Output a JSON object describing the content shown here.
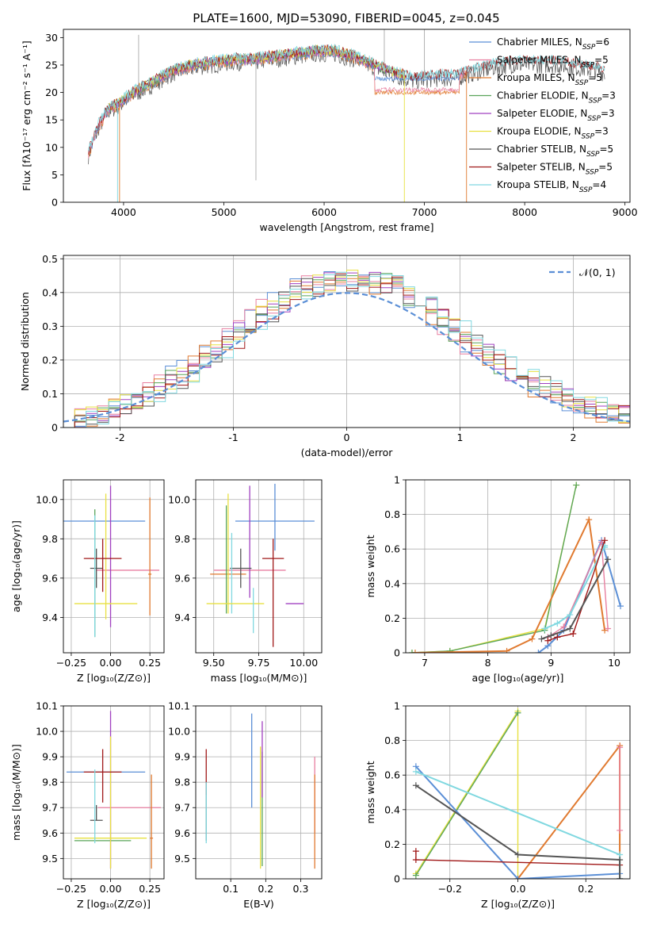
{
  "title": "PLATE=1600, MJD=53090, FIBERID=0045, z=0.045",
  "colors": {
    "chabrier_miles": "#5b8fd6",
    "salpeter_miles": "#e87fa0",
    "kroupa_miles": "#e07a30",
    "chabrier_elodie": "#5aa55a",
    "salpeter_elodie": "#a040c0",
    "kroupa_elodie": "#e8e040",
    "chabrier_stelib": "#555555",
    "salpeter_stelib": "#a01818",
    "kroupa_stelib": "#80d8e0",
    "normal_curve": "#5b8fd6",
    "grid": "#b0b0b0"
  },
  "legend_spectrum": [
    {
      "key": "chabrier_miles",
      "pre": "Chabrier MILES, N",
      "sub": "SSP",
      "post": "=6"
    },
    {
      "key": "salpeter_miles",
      "pre": "Salpeter MILES, N",
      "sub": "SSP",
      "post": "=5"
    },
    {
      "key": "kroupa_miles",
      "pre": "Kroupa MILES, N",
      "sub": "SSP",
      "post": "=5"
    },
    {
      "key": "chabrier_elodie",
      "pre": "Chabrier ELODIE, N",
      "sub": "SSP",
      "post": "=3"
    },
    {
      "key": "salpeter_elodie",
      "pre": "Salpeter ELODIE, N",
      "sub": "SSP",
      "post": "=3"
    },
    {
      "key": "kroupa_elodie",
      "pre": "Kroupa ELODIE, N",
      "sub": "SSP",
      "post": "=3"
    },
    {
      "key": "chabrier_stelib",
      "pre": "Chabrier STELIB, N",
      "sub": "SSP",
      "post": "=5"
    },
    {
      "key": "salpeter_stelib",
      "pre": "Salpeter STELIB, N",
      "sub": "SSP",
      "post": "=5"
    },
    {
      "key": "kroupa_stelib",
      "pre": "Kroupa STELIB, N",
      "sub": "SSP",
      "post": "=4"
    }
  ],
  "chart_data": [
    {
      "id": "spectrum",
      "type": "line",
      "xlabel": "wavelength [Angstrom, rest frame]",
      "ylabel": "Flux [fλ10⁻¹⁷ erg cm⁻² s⁻¹ A⁻¹]",
      "xlim": [
        3400,
        9050
      ],
      "ylim": [
        0,
        31.5
      ],
      "xticks": [
        4000,
        5000,
        6000,
        7000,
        8000,
        9000
      ],
      "yticks": [
        0,
        5,
        10,
        15,
        20,
        25,
        30
      ],
      "continuum": {
        "x": [
          3650,
          3750,
          3850,
          3950,
          4100,
          4300,
          4500,
          4700,
          4900,
          5100,
          5300,
          5500,
          5700,
          5900,
          6100,
          6300,
          6500,
          6700,
          6900,
          7100,
          7300,
          7500,
          7700,
          7900,
          8100,
          8300,
          8500,
          8700,
          8800
        ],
        "y": [
          9,
          14,
          17,
          18,
          20,
          22,
          24,
          25,
          25.5,
          26,
          26,
          26.5,
          27,
          27.5,
          27.5,
          26.5,
          25,
          23.5,
          22.5,
          23,
          23,
          24,
          25,
          25.5,
          25.5,
          25.5,
          25,
          24.5,
          24
        ]
      },
      "miles_gap_value": {
        "chabrier_miles": 22.5,
        "kroupa_miles": 20,
        "salpeter_miles": 20.5
      }
    },
    {
      "id": "residuals",
      "type": "step",
      "xlabel": "(data-model)/error",
      "ylabel": "Normed distribution",
      "xlim": [
        -2.5,
        2.5
      ],
      "ylim": [
        0,
        0.51
      ],
      "xticks": [
        -2,
        -1,
        0,
        1,
        2
      ],
      "yticks": [
        0,
        0.1,
        0.2,
        0.3,
        0.4,
        0.5
      ],
      "normal_label": "𝒩(0, 1)"
    },
    {
      "id": "age_vs_z",
      "type": "errorbar",
      "xlabel": "Z [log₁₀(Z/Z⊙)]",
      "ylabel": "age  [log₁₀(age/yr)]",
      "xlim": [
        -0.3,
        0.34
      ],
      "ylim": [
        9.22,
        10.1
      ],
      "xticks": [
        -0.25,
        0.0,
        0.25
      ],
      "xticklabels": [
        "−0.25",
        "0.00",
        "0.25"
      ],
      "yticks": [
        9.4,
        9.6,
        9.8,
        10.0
      ],
      "yticklabels": [
        "9.4",
        "9.6",
        "9.8",
        "10.0"
      ],
      "points": [
        {
          "key": "chabrier_miles",
          "x": -0.05,
          "xerr": 0.27,
          "y": 9.89,
          "yerr": [
            0.0,
            0.0
          ]
        },
        {
          "key": "salpeter_miles",
          "x": 0.11,
          "xerr": 0.2,
          "y": 9.64,
          "yerr": [
            0.0,
            0.0
          ]
        },
        {
          "key": "kroupa_miles",
          "x": 0.25,
          "xerr": 0.01,
          "y": 9.62,
          "yerr": [
            0.21,
            0.39
          ]
        },
        {
          "key": "chabrier_elodie",
          "x": -0.1,
          "xerr": 0.0,
          "y": 9.62,
          "yerr": [
            0.32,
            0.33
          ]
        },
        {
          "key": "salpeter_elodie",
          "x": 0.0,
          "xerr": 0.0,
          "y": 9.7,
          "yerr": [
            0.35,
            0.37
          ]
        },
        {
          "key": "kroupa_elodie",
          "x": -0.03,
          "xerr": 0.2,
          "y": 9.47,
          "yerr": [
            0.08,
            0.56
          ]
        },
        {
          "key": "chabrier_stelib",
          "x": -0.09,
          "xerr": 0.04,
          "y": 9.65,
          "yerr": [
            0.1,
            0.1
          ]
        },
        {
          "key": "salpeter_stelib",
          "x": -0.05,
          "xerr": 0.12,
          "y": 9.7,
          "yerr": [
            0.17,
            0.1
          ]
        },
        {
          "key": "kroupa_stelib",
          "x": -0.1,
          "xerr": 0.0,
          "y": 9.47,
          "yerr": [
            0.17,
            0.45
          ]
        }
      ]
    },
    {
      "id": "age_vs_mass",
      "type": "errorbar",
      "xlabel": "mass [log₁₀(M/M⊙)]",
      "ylabel": "",
      "xlim": [
        9.4,
        10.1
      ],
      "ylim": [
        9.22,
        10.1
      ],
      "xticks": [
        9.5,
        9.75,
        10.0
      ],
      "xticklabels": [
        "9.50",
        "9.75",
        "10.00"
      ],
      "yticks": [
        9.4,
        9.6,
        9.8,
        10.0
      ],
      "yticklabels": [
        "9.4",
        "9.6",
        "9.8",
        "10.0"
      ],
      "points": [
        {
          "key": "chabrier_miles",
          "x": 9.84,
          "xerr": 0.22,
          "y": 9.89,
          "yerr": [
            0.15,
            0.19
          ]
        },
        {
          "key": "salpeter_miles",
          "x": 9.7,
          "xerr": 0.2,
          "y": 9.64,
          "yerr": [
            0.0,
            0.0
          ]
        },
        {
          "key": "kroupa_miles",
          "x": 9.58,
          "xerr": 0.1,
          "y": 9.62,
          "yerr": [
            0.0,
            0.0
          ]
        },
        {
          "key": "chabrier_elodie",
          "x": 9.57,
          "xerr": 0.0,
          "y": 9.62,
          "yerr": [
            0.2,
            0.35
          ]
        },
        {
          "key": "salpeter_elodie",
          "x": 9.7,
          "xerr": 0.0,
          "y": 9.7,
          "yerr": [
            0.2,
            0.37
          ]
        },
        {
          "key": "kroupa_elodie",
          "x": 9.58,
          "xerr": 0.0,
          "y": 9.62,
          "yerr": [
            0.2,
            0.41
          ]
        },
        {
          "key": "chabrier_stelib",
          "x": 9.65,
          "xerr": 0.06,
          "y": 9.65,
          "yerr": [
            0.1,
            0.1
          ]
        },
        {
          "key": "salpeter_stelib",
          "x": 9.83,
          "xerr": 0.06,
          "y": 9.7,
          "yerr": [
            0.45,
            0.1
          ]
        },
        {
          "key": "kroupa_stelib",
          "x": 9.6,
          "xerr": 0.0,
          "y": 9.62,
          "yerr": [
            0.2,
            0.21
          ]
        }
      ],
      "extra_points": [
        {
          "key": "kroupa_elodie",
          "x": 9.62,
          "xerr": 0.16,
          "y": 9.47,
          "yerr": [
            0,
            0
          ]
        },
        {
          "key": "salpeter_elodie",
          "x": 9.95,
          "xerr": 0.05,
          "y": 9.47,
          "yerr": [
            0,
            0
          ]
        },
        {
          "key": "kroupa_stelib",
          "x": 9.72,
          "xerr": 0.0,
          "y": 9.47,
          "yerr": [
            0.15,
            0.08
          ]
        }
      ]
    },
    {
      "id": "weight_vs_age",
      "type": "line",
      "xlabel": "age  [log₁₀(age/yr)]",
      "ylabel": "mass weight",
      "xlim": [
        6.7,
        10.25
      ],
      "ylim": [
        0,
        1.0
      ],
      "xticks": [
        7,
        8,
        9,
        10
      ],
      "yticks": [
        0,
        0.2,
        0.4,
        0.6,
        0.8,
        1.0
      ],
      "series": [
        {
          "key": "kroupa_elodie",
          "x": [
            6.8,
            7.4,
            8.9,
            9.4
          ],
          "y": [
            0.0,
            0.01,
            0.14,
            0.97
          ]
        },
        {
          "key": "chabrier_elodie",
          "x": [
            6.8,
            7.4,
            8.9,
            9.4
          ],
          "y": [
            0.0,
            0.01,
            0.13,
            0.97
          ]
        },
        {
          "key": "kroupa_miles",
          "x": [
            6.85,
            8.3,
            8.7,
            9.6,
            9.85
          ],
          "y": [
            0.0,
            0.01,
            0.08,
            0.77,
            0.13
          ]
        },
        {
          "key": "chabrier_miles",
          "x": [
            8.8,
            8.95,
            9.2,
            9.8,
            10.1
          ],
          "y": [
            0.0,
            0.04,
            0.13,
            0.65,
            0.27
          ]
        },
        {
          "key": "salpeter_miles",
          "x": [
            8.95,
            9.2,
            9.8,
            9.9
          ],
          "y": [
            0.09,
            0.15,
            0.64,
            0.14
          ]
        },
        {
          "key": "kroupa_stelib",
          "x": [
            8.9,
            9.1,
            9.3,
            9.85,
            9.85
          ],
          "y": [
            0.14,
            0.17,
            0.22,
            0.62,
            0.61
          ]
        },
        {
          "key": "salpeter_stelib",
          "x": [
            8.95,
            9.1,
            9.35,
            9.85
          ],
          "y": [
            0.07,
            0.09,
            0.11,
            0.65
          ]
        },
        {
          "key": "chabrier_stelib",
          "x": [
            8.85,
            9.0,
            9.3,
            9.9
          ],
          "y": [
            0.08,
            0.1,
            0.14,
            0.54
          ]
        }
      ]
    },
    {
      "id": "mass_vs_z",
      "type": "errorbar",
      "xlabel": "Z [log₁₀(Z/Z⊙)]",
      "ylabel": "mass [log₁₀(M/M⊙)]",
      "xlim": [
        -0.3,
        0.34
      ],
      "ylim": [
        9.42,
        10.1
      ],
      "xticks": [
        -0.25,
        0.0,
        0.25
      ],
      "xticklabels": [
        "−0.25",
        "0.00",
        "0.25"
      ],
      "yticks": [
        9.5,
        9.6,
        9.7,
        9.8,
        9.9,
        10.0,
        10.1
      ],
      "yticklabels": [
        "9.5",
        "9.6",
        "9.7",
        "9.8",
        "9.9",
        "10.0",
        "10.1"
      ],
      "points": [
        {
          "key": "chabrier_miles",
          "x": -0.03,
          "xerr": 0.25,
          "y": 9.84,
          "yerr": [
            0,
            0
          ]
        },
        {
          "key": "salpeter_miles",
          "x": 0.12,
          "xerr": 0.2,
          "y": 9.7,
          "yerr": [
            0,
            0
          ]
        },
        {
          "key": "kroupa_miles",
          "x": 0.26,
          "xerr": 0.01,
          "y": 9.58,
          "yerr": [
            0.12,
            0.25
          ]
        },
        {
          "key": "chabrier_elodie",
          "x": -0.05,
          "xerr": 0.18,
          "y": 9.57,
          "yerr": [
            0,
            0
          ]
        },
        {
          "key": "salpeter_elodie",
          "x": 0.0,
          "xerr": 0.0,
          "y": 9.7,
          "yerr": [
            0.24,
            0.38
          ]
        },
        {
          "key": "kroupa_elodie",
          "x": 0.0,
          "xerr": 0.23,
          "y": 9.58,
          "yerr": [
            0.12,
            0.4
          ]
        },
        {
          "key": "chabrier_stelib",
          "x": -0.09,
          "xerr": 0.04,
          "y": 9.65,
          "yerr": [
            0,
            0.06
          ]
        },
        {
          "key": "salpeter_stelib",
          "x": -0.05,
          "xerr": 0.12,
          "y": 9.84,
          "yerr": [
            0.12,
            0.09
          ]
        },
        {
          "key": "kroupa_stelib",
          "x": -0.1,
          "xerr": 0.0,
          "y": 9.7,
          "yerr": [
            0.14,
            0.15
          ]
        }
      ]
    },
    {
      "id": "mass_vs_ebv",
      "type": "errorbar",
      "xlabel": "E(B-V)",
      "ylabel": "",
      "xlim": [
        0.0,
        0.36
      ],
      "ylim": [
        9.42,
        10.1
      ],
      "xticks": [
        0.1,
        0.2,
        0.3
      ],
      "xticklabels": [
        "0.1",
        "0.2",
        "0.3"
      ],
      "yticks": [
        9.5,
        9.6,
        9.7,
        9.8,
        9.9,
        10.0,
        10.1
      ],
      "yticklabels": [
        "9.5",
        "9.6",
        "9.7",
        "9.8",
        "9.9",
        "10.0",
        "10.1"
      ],
      "points": [
        {
          "key": "chabrier_miles",
          "x": 0.16,
          "xerr": 0,
          "y": 9.84,
          "yerr": [
            0.14,
            0.23
          ]
        },
        {
          "key": "salpeter_miles",
          "x": 0.34,
          "xerr": 0,
          "y": 9.7,
          "yerr": [
            0.1,
            0.2
          ]
        },
        {
          "key": "kroupa_miles",
          "x": 0.34,
          "xerr": 0,
          "y": 9.58,
          "yerr": [
            0.12,
            0.25
          ]
        },
        {
          "key": "chabrier_elodie",
          "x": 0.19,
          "xerr": 0,
          "y": 9.57,
          "yerr": [
            0.1,
            0.35
          ]
        },
        {
          "key": "salpeter_elodie",
          "x": 0.19,
          "xerr": 0,
          "y": 9.84,
          "yerr": [
            0.1,
            0.2
          ]
        },
        {
          "key": "kroupa_elodie",
          "x": 0.185,
          "xerr": 0,
          "y": 9.58,
          "yerr": [
            0.12,
            0.36
          ]
        },
        {
          "key": "chabrier_stelib",
          "x": 0.03,
          "xerr": 0,
          "y": 9.65,
          "yerr": [
            0.08,
            0.15
          ]
        },
        {
          "key": "salpeter_stelib",
          "x": 0.03,
          "xerr": 0,
          "y": 9.84,
          "yerr": [
            0.09,
            0.09
          ]
        },
        {
          "key": "kroupa_stelib",
          "x": 0.03,
          "xerr": 0,
          "y": 9.7,
          "yerr": [
            0.14,
            0.1
          ]
        }
      ]
    },
    {
      "id": "weight_vs_z",
      "type": "line",
      "xlabel": "Z [log₁₀(Z/Z⊙)]",
      "ylabel": "mass weight",
      "xlim": [
        -0.33,
        0.33
      ],
      "ylim": [
        0,
        1.0
      ],
      "xticks": [
        -0.2,
        0.0,
        0.2
      ],
      "xticklabels": [
        "−0.2",
        "0.0",
        "0.2"
      ],
      "yticks": [
        0,
        0.2,
        0.4,
        0.6,
        0.8,
        1.0
      ],
      "series": [
        {
          "key": "kroupa_elodie",
          "x": [
            -0.3,
            0.0,
            0.0
          ],
          "y": [
            0.03,
            0.97,
            0.0
          ]
        },
        {
          "key": "chabrier_elodie",
          "x": [
            -0.3,
            0.0
          ],
          "y": [
            0.02,
            0.96
          ]
        },
        {
          "key": "kroupa_miles",
          "x": [
            0.0,
            0.3,
            0.3
          ],
          "y": [
            0.0,
            0.77,
            0.0
          ]
        },
        {
          "key": "chabrier_miles",
          "x": [
            -0.3,
            0.0,
            0.3,
            0.3
          ],
          "y": [
            0.65,
            0.0,
            0.03,
            0.0
          ]
        },
        {
          "key": "kroupa_stelib",
          "x": [
            -0.3,
            0.3,
            0.3
          ],
          "y": [
            0.62,
            0.14,
            0.0
          ]
        },
        {
          "key": "salpeter_stelib",
          "x": [
            -0.3,
            -0.3,
            0.3
          ],
          "y": [
            0.16,
            0.11,
            0.08
          ]
        },
        {
          "key": "chabrier_stelib",
          "x": [
            -0.3,
            0.0,
            0.3,
            0.3
          ],
          "y": [
            0.54,
            0.14,
            0.11,
            0.0
          ]
        },
        {
          "key": "salpeter_miles",
          "x": [
            0.3,
            0.3
          ],
          "y": [
            0.28,
            0.76
          ]
        }
      ]
    }
  ]
}
